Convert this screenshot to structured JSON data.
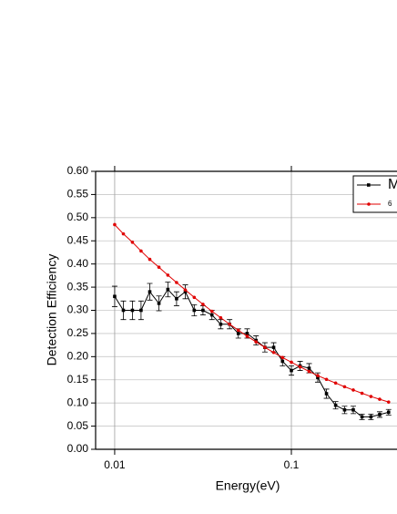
{
  "chart_data": {
    "type": "line",
    "x_label": "Energy(eV)",
    "y_label": "Detection Efficiency",
    "x": [
      0.01,
      0.0112,
      0.0126,
      0.0141,
      0.0158,
      0.0178,
      0.02,
      0.0224,
      0.0251,
      0.0282,
      0.0316,
      0.0355,
      0.0398,
      0.0447,
      0.0501,
      0.0562,
      0.0631,
      0.0708,
      0.0794,
      0.0891,
      0.1,
      0.112,
      0.126,
      0.141,
      0.158,
      0.178,
      0.2,
      0.224,
      0.251,
      0.282,
      0.316,
      0.355
    ],
    "series": [
      {
        "name": "M",
        "color": "#000000",
        "values": [
          0.33,
          0.3,
          0.3,
          0.3,
          0.34,
          0.315,
          0.345,
          0.325,
          0.34,
          0.3,
          0.3,
          0.29,
          0.27,
          0.27,
          0.25,
          0.25,
          0.235,
          0.22,
          0.22,
          0.19,
          0.17,
          0.18,
          0.175,
          0.155,
          0.12,
          0.095,
          0.085,
          0.085,
          0.07,
          0.07,
          0.075,
          0.08
        ],
        "errors": [
          0.022,
          0.02,
          0.02,
          0.02,
          0.018,
          0.016,
          0.016,
          0.015,
          0.015,
          0.012,
          0.01,
          0.01,
          0.01,
          0.01,
          0.01,
          0.01,
          0.01,
          0.01,
          0.01,
          0.01,
          0.01,
          0.01,
          0.01,
          0.01,
          0.01,
          0.008,
          0.008,
          0.008,
          0.006,
          0.006,
          0.006,
          0.006
        ]
      },
      {
        "name": "6",
        "color": "#e00000",
        "values": [
          0.485,
          0.465,
          0.447,
          0.428,
          0.41,
          0.393,
          0.376,
          0.36,
          0.344,
          0.328,
          0.313,
          0.298,
          0.284,
          0.27,
          0.257,
          0.244,
          0.232,
          0.22,
          0.209,
          0.198,
          0.188,
          0.178,
          0.168,
          0.159,
          0.151,
          0.143,
          0.135,
          0.128,
          0.121,
          0.114,
          0.108,
          0.102
        ]
      }
    ],
    "log_x": true,
    "xlim": [
      0.0078,
      0.396
    ],
    "xticks": [
      0.01,
      0.1
    ],
    "ylim": [
      0,
      0.6
    ],
    "yticks": [
      {
        "value": 0,
        "label": "0.00"
      },
      {
        "value": 0.05,
        "label": "0.05"
      },
      {
        "value": 0.1,
        "label": "0.10"
      },
      {
        "value": 0.15,
        "label": "0.15"
      },
      {
        "value": 0.2,
        "label": "0.20"
      },
      {
        "value": 0.25,
        "label": "0.25"
      },
      {
        "value": 0.3,
        "label": "0.30"
      },
      {
        "value": 0.35,
        "label": "0.35"
      },
      {
        "value": 0.4,
        "label": "0.40"
      },
      {
        "value": 0.45,
        "label": "0.45"
      },
      {
        "value": 0.5,
        "label": "0.50"
      },
      {
        "value": 0.55,
        "label": "0.55"
      },
      {
        "value": 0.6,
        "label": "0.60"
      }
    ],
    "grid": true,
    "legend": "upper right"
  }
}
